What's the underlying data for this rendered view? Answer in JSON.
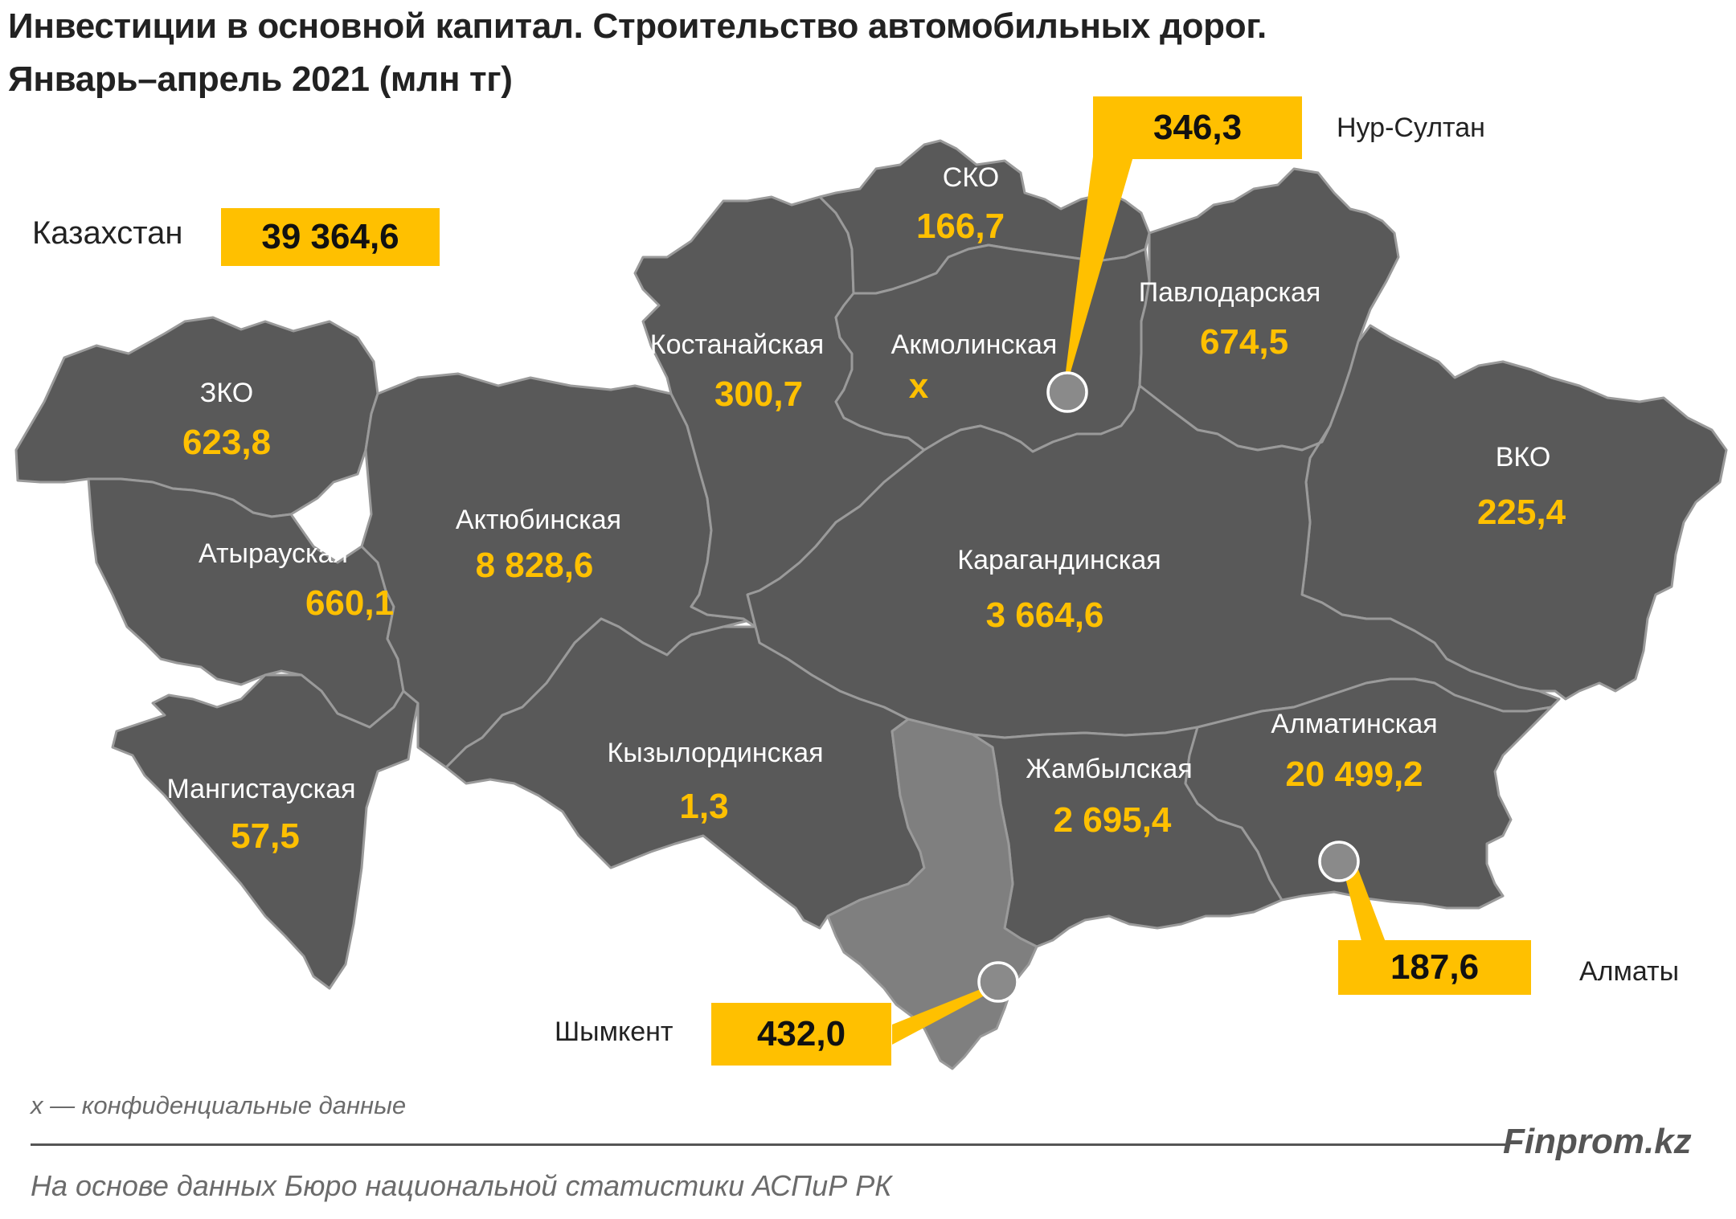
{
  "title": {
    "line1": "Инвестиции в основной капитал. Строительство автомобильных дорог.",
    "line2": "Январь–апрель 2021  (млн тг)"
  },
  "colors": {
    "region_fill": "#595959",
    "shymkent_fill": "#7f7f7f",
    "border": "#9a9a9a",
    "value_text": "#ffc000",
    "label_text": "#ffffff",
    "callout": "#ffc000"
  },
  "total": {
    "label": "Казахстан",
    "value": "39 364,6"
  },
  "regions": [
    {
      "id": "zko",
      "name": "ЗКО",
      "value": "623,8"
    },
    {
      "id": "atyrau",
      "name": "Атырауская",
      "value": "660,1"
    },
    {
      "id": "mangystau",
      "name": "Мангистауская",
      "value": "57,5"
    },
    {
      "id": "aktobe",
      "name": "Актюбинская",
      "value": "8 828,6"
    },
    {
      "id": "kostanay",
      "name": "Костанайская",
      "value": "300,7"
    },
    {
      "id": "sko",
      "name": "СКО",
      "value": "166,7"
    },
    {
      "id": "akmola",
      "name": "Акмолинская",
      "value": "x"
    },
    {
      "id": "pavlodar",
      "name": "Павлодарская",
      "value": "674,5"
    },
    {
      "id": "vko",
      "name": "ВКО",
      "value": "225,4"
    },
    {
      "id": "karaganda",
      "name": "Карагандинская",
      "value": "3 664,6"
    },
    {
      "id": "kyzylorda",
      "name": "Кызылординская",
      "value": "1,3"
    },
    {
      "id": "zhambyl",
      "name": "Жамбылская",
      "value": "2 695,4"
    },
    {
      "id": "almaty_reg",
      "name": "Алматинская",
      "value": "20 499,2"
    }
  ],
  "cities": [
    {
      "id": "nur_sultan",
      "name": "Нур-Султан",
      "value": "346,3"
    },
    {
      "id": "almaty",
      "name": "Алматы",
      "value": "187,6"
    },
    {
      "id": "shymkent",
      "name": "Шымкент",
      "value": "432,0"
    }
  ],
  "footnote": "x — конфиденциальные данные",
  "brand": "Finprom.kz",
  "source": "На основе данных  Бюро национальной  статистики АСПиР РК"
}
